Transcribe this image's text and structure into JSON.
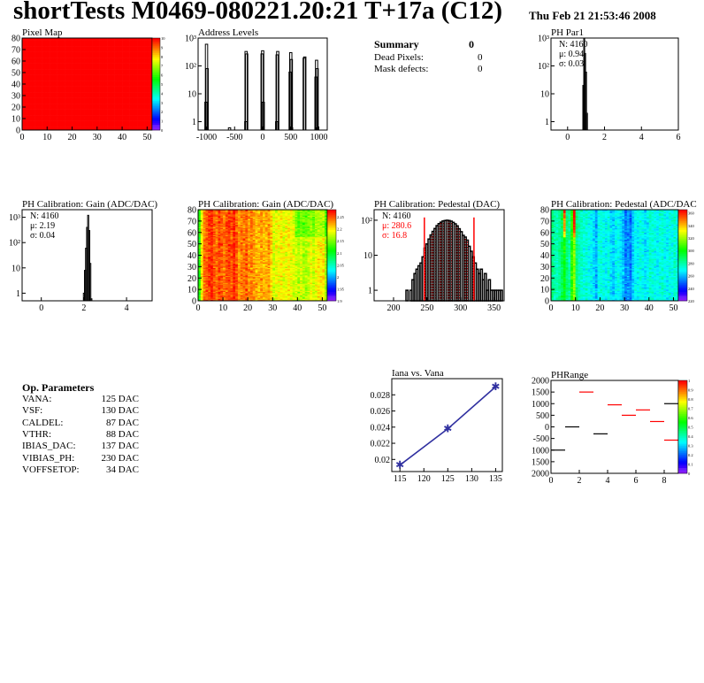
{
  "header": {
    "title": "shortTests M0469-080221.20:21 T+17a (C12)",
    "date": "Thu Feb 21 21:53:46 2008"
  },
  "summary": {
    "title": "Summary",
    "total": "0",
    "rows": [
      {
        "label": "Dead Pixels:",
        "value": "0"
      },
      {
        "label": "Mask defects:",
        "value": "0"
      }
    ]
  },
  "op_parameters": {
    "title": "Op. Parameters",
    "rows": [
      {
        "label": "VANA:",
        "value": "125 DAC"
      },
      {
        "label": "VSF:",
        "value": "130 DAC"
      },
      {
        "label": "CALDEL:",
        "value": "87 DAC"
      },
      {
        "label": "VTHR:",
        "value": "88 DAC"
      },
      {
        "label": "IBIAS_DAC:",
        "value": "137 DAC"
      },
      {
        "label": "VIBIAS_PH:",
        "value": "230 DAC"
      },
      {
        "label": "VOFFSETOP:",
        "value": "34 DAC"
      }
    ]
  },
  "chart_data": [
    {
      "id": "pixelmap",
      "type": "heatmap",
      "title": "Pixel Map",
      "xlim": [
        0,
        52
      ],
      "ylim": [
        0,
        80
      ],
      "zlim": [
        0,
        10
      ],
      "xticks": [
        "0",
        "10",
        "20",
        "30",
        "40",
        "50"
      ],
      "yticks": [
        "0",
        "10",
        "20",
        "30",
        "40",
        "50",
        "60",
        "70",
        "80"
      ],
      "zticks": [
        "0",
        "1",
        "2",
        "3",
        "4",
        "5",
        "6",
        "7",
        "8",
        "9",
        "10"
      ],
      "uniform_value": 10
    },
    {
      "id": "address",
      "type": "bar",
      "title": "Address Levels",
      "log_y": true,
      "xlim": [
        -1150,
        1150
      ],
      "ylim": [
        0.5,
        1000
      ],
      "xticks": [
        "-1000",
        "-500",
        "0",
        "500",
        "1000"
      ],
      "yticks": [
        "1",
        "10",
        "10²",
        "10³"
      ],
      "bins": [
        [
          -1010,
          5
        ],
        [
          -1000,
          600
        ],
        [
          -990,
          80
        ],
        [
          -590,
          0.6
        ],
        [
          -300,
          1
        ],
        [
          -295,
          330
        ],
        [
          -285,
          270
        ],
        [
          -10,
          270
        ],
        [
          0,
          350
        ],
        [
          10,
          5
        ],
        [
          250,
          1
        ],
        [
          258,
          250
        ],
        [
          268,
          330
        ],
        [
          490,
          60
        ],
        [
          500,
          300
        ],
        [
          510,
          170
        ],
        [
          515,
          0.6
        ],
        [
          740,
          190
        ],
        [
          750,
          210
        ],
        [
          950,
          40
        ],
        [
          960,
          160
        ],
        [
          970,
          80
        ],
        [
          980,
          0.6
        ]
      ]
    },
    {
      "id": "phpar1",
      "type": "bar",
      "title": "PH Par1",
      "log_y": true,
      "xlim": [
        -0.9,
        6
      ],
      "ylim": [
        0.5,
        1000
      ],
      "xticks": [
        "0",
        "2",
        "4",
        "6"
      ],
      "yticks": [
        "1",
        "10",
        "10²",
        "10³"
      ],
      "stats": {
        "n": "N: 4160",
        "mean": "μ: 0.94",
        "sigma": "σ: 0.03"
      },
      "bins": [
        [
          0.85,
          20
        ],
        [
          0.9,
          1000
        ],
        [
          0.95,
          280
        ],
        [
          1.0,
          60
        ],
        [
          1.05,
          2
        ]
      ],
      "bin_width": 0.05
    },
    {
      "id": "gainhist",
      "type": "bar",
      "title": "PH Calibration: Gain (ADC/DAC)",
      "log_y": true,
      "xlim": [
        -0.9,
        5.2
      ],
      "ylim": [
        0.5,
        2000
      ],
      "xticks": [
        "0",
        "2",
        "4"
      ],
      "yticks": [
        "1",
        "10",
        "10²",
        "10³"
      ],
      "stats": {
        "n": "N: 4160",
        "mean": "μ: 2.19",
        "sigma": "σ: 0.04"
      },
      "bins": [
        [
          2.0,
          1
        ],
        [
          2.05,
          8
        ],
        [
          2.1,
          60
        ],
        [
          2.15,
          400
        ],
        [
          2.2,
          1200
        ],
        [
          2.25,
          300
        ],
        [
          2.3,
          15
        ],
        [
          2.35,
          0.6
        ]
      ],
      "bin_width": 0.05
    },
    {
      "id": "gainmap",
      "type": "heatmap",
      "title": "PH Calibration: Gain (ADC/DAC)",
      "xlim": [
        0,
        52
      ],
      "ylim": [
        0,
        80
      ],
      "zlim": [
        1.9,
        2.28
      ],
      "xticks": [
        "0",
        "10",
        "20",
        "30",
        "40",
        "50"
      ],
      "yticks": [
        "0",
        "10",
        "20",
        "30",
        "40",
        "50",
        "60",
        "70",
        "80"
      ],
      "zticks": [
        "1.9",
        "1.95",
        "2",
        "2.05",
        "2.1",
        "2.15",
        "2.2",
        "2.25"
      ],
      "noise": 0.035,
      "col_means": [
        2.12,
        2.2,
        2.24,
        2.25,
        2.26,
        2.27,
        2.25,
        2.24,
        2.26,
        2.25,
        2.24,
        2.25,
        2.26,
        2.25,
        2.27,
        2.25,
        2.23,
        2.24,
        2.24,
        2.25,
        2.23,
        2.24,
        2.23,
        2.22,
        2.22,
        2.23,
        2.22,
        2.22,
        2.23,
        2.21,
        2.18,
        2.19,
        2.19,
        2.2,
        2.19,
        2.19,
        2.2,
        2.19,
        2.18,
        2.18,
        2.17,
        2.18,
        2.17,
        2.17,
        2.18,
        2.19,
        2.18,
        2.19,
        2.2,
        2.2,
        2.2,
        2.16
      ]
    },
    {
      "id": "pedhist",
      "type": "bar",
      "title": "PH Calibration: Pedestal (DAC)",
      "log_y": true,
      "xlim": [
        171,
        365
      ],
      "ylim": [
        0.5,
        200
      ],
      "xticks": [
        "200",
        "250",
        "300",
        "350"
      ],
      "yticks": [
        "1",
        "10",
        "10²"
      ],
      "stats": {
        "n": "N: 4160",
        "mean": "μ: 280.6",
        "sigma": "σ: 16.8"
      },
      "fit_range": [
        246,
        320
      ],
      "bin_width": 3,
      "bins": [
        [
          220,
          1
        ],
        [
          223,
          0
        ],
        [
          226,
          1
        ],
        [
          229,
          2
        ],
        [
          232,
          3
        ],
        [
          235,
          4
        ],
        [
          238,
          5
        ],
        [
          241,
          6
        ],
        [
          244,
          9
        ],
        [
          247,
          16
        ],
        [
          250,
          21
        ],
        [
          253,
          29
        ],
        [
          256,
          38
        ],
        [
          259,
          48
        ],
        [
          262,
          58
        ],
        [
          265,
          70
        ],
        [
          268,
          80
        ],
        [
          271,
          88
        ],
        [
          274,
          95
        ],
        [
          277,
          98
        ],
        [
          280,
          100
        ],
        [
          283,
          98
        ],
        [
          286,
          94
        ],
        [
          289,
          87
        ],
        [
          292,
          79
        ],
        [
          295,
          69
        ],
        [
          298,
          57
        ],
        [
          301,
          47
        ],
        [
          304,
          37
        ],
        [
          307,
          33
        ],
        [
          310,
          27
        ],
        [
          313,
          18
        ],
        [
          316,
          13
        ],
        [
          319,
          9
        ],
        [
          322,
          6
        ],
        [
          325,
          4
        ],
        [
          328,
          3
        ],
        [
          331,
          4
        ],
        [
          334,
          2
        ],
        [
          337,
          3
        ],
        [
          340,
          1
        ],
        [
          343,
          2
        ],
        [
          346,
          1
        ],
        [
          349,
          1
        ],
        [
          352,
          1
        ],
        [
          355,
          1
        ],
        [
          358,
          1
        ],
        [
          361,
          1
        ]
      ]
    },
    {
      "id": "pedmap",
      "type": "heatmap",
      "title": "PH Calibration: Pedestal (ADC/DAC",
      "xlim": [
        0,
        52
      ],
      "ylim": [
        0,
        80
      ],
      "zlim": [
        220,
        365
      ],
      "xticks": [
        "0",
        "10",
        "20",
        "30",
        "40",
        "50"
      ],
      "yticks": [
        "0",
        "10",
        "20",
        "30",
        "40",
        "50",
        "60",
        "70",
        "80"
      ],
      "zticks": [
        "220",
        "240",
        "260",
        "280",
        "300",
        "320",
        "340",
        "360"
      ],
      "noise": 12,
      "col_means": [
        285,
        280,
        278,
        282,
        290,
        300,
        285,
        280,
        305,
        318,
        285,
        278,
        275,
        272,
        275,
        270,
        268,
        265,
        258,
        270,
        272,
        270,
        268,
        272,
        265,
        262,
        268,
        270,
        265,
        260,
        252,
        255,
        250,
        262,
        270,
        268,
        272,
        270,
        265,
        268,
        275,
        272,
        270,
        268,
        272,
        275,
        270,
        268,
        272,
        270,
        275,
        270
      ]
    },
    {
      "id": "iana",
      "type": "line",
      "title": "Iana vs. Vana",
      "xlim": [
        113.3,
        136.4
      ],
      "ylim": [
        0.0185,
        0.03
      ],
      "xticks": [
        "115",
        "120",
        "125",
        "130",
        "135"
      ],
      "yticks": [
        "0.02",
        "0.022",
        "0.024",
        "0.026",
        "0.028"
      ],
      "x": [
        115,
        125,
        135
      ],
      "y": [
        0.0193,
        0.0238,
        0.029
      ],
      "color": "#3030a0"
    },
    {
      "id": "phrange",
      "type": "heatmap",
      "title": "PHRange",
      "xlim": [
        0,
        9
      ],
      "ylim": [
        -2000,
        2000
      ],
      "zlim": [
        0,
        1
      ],
      "xticks": [
        "0",
        "2",
        "4",
        "6",
        "8"
      ],
      "yticks": [
        "2000",
        "1500",
        "1000",
        "500",
        "0",
        "-500",
        "1000",
        "1500",
        "2000"
      ],
      "zticks": [
        "0",
        "0.1",
        "0.2",
        "0.3",
        "0.4",
        "0.5",
        "0.6",
        "0.7",
        "0.8",
        "0.9",
        "1"
      ],
      "segments": [
        [
          0,
          -1000,
          "#000000"
        ],
        [
          1,
          0,
          "#000000"
        ],
        [
          2,
          1500,
          "#ff0000"
        ],
        [
          3,
          -300,
          "#000000"
        ],
        [
          4,
          950,
          "#ff0000"
        ],
        [
          5,
          500,
          "#ff0000"
        ],
        [
          6,
          730,
          "#ff0000"
        ],
        [
          7,
          230,
          "#ff0000"
        ],
        [
          8,
          1000,
          "#000000"
        ],
        [
          8,
          -570,
          "#ff0000"
        ]
      ]
    }
  ]
}
